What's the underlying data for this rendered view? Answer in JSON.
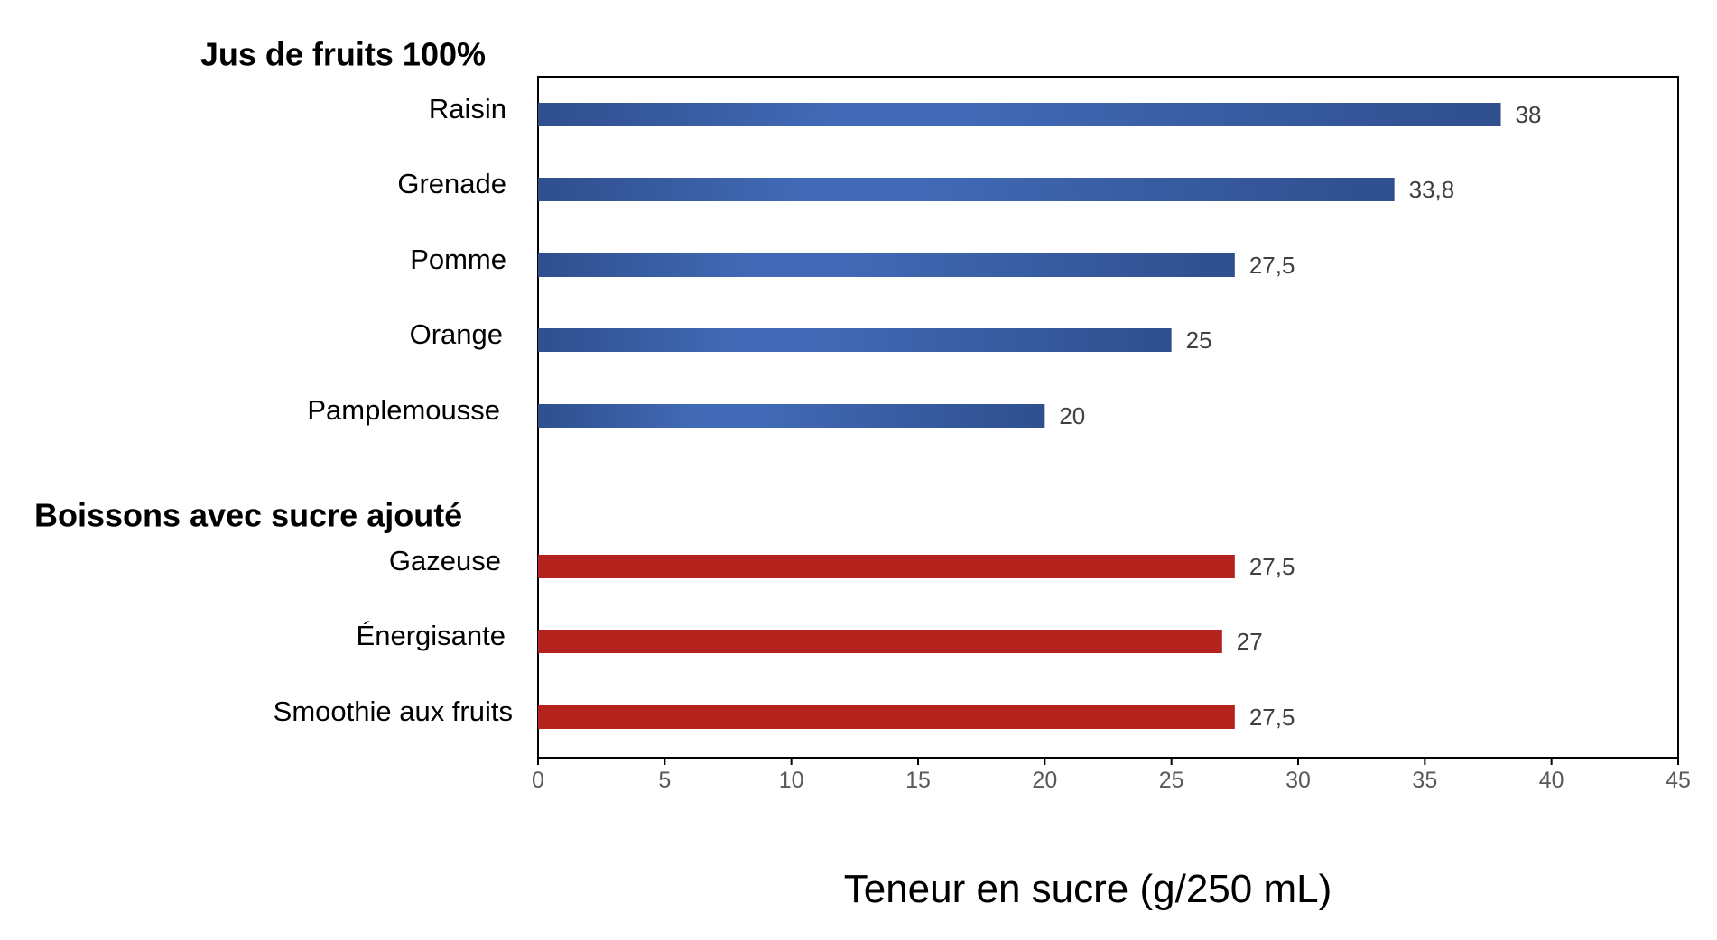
{
  "chart_data": {
    "type": "bar",
    "orientation": "horizontal",
    "xlabel": "Teneur en sucre (g/250 mL)",
    "xlim": [
      0,
      45
    ],
    "xticks": [
      0,
      5,
      10,
      15,
      20,
      25,
      30,
      35,
      40,
      45
    ],
    "grid": false,
    "legend": "none",
    "groups": [
      {
        "title": "Jus de fruits 100%",
        "color": "#3a5fa8",
        "items": [
          {
            "label": "Raisin",
            "value": 38,
            "value_label": "38"
          },
          {
            "label": "Grenade",
            "value": 33.8,
            "value_label": "33,8"
          },
          {
            "label": "Pomme",
            "value": 27.5,
            "value_label": "27,5"
          },
          {
            "label": "Orange",
            "value": 25,
            "value_label": "25"
          },
          {
            "label": "Pamplemousse",
            "value": 20,
            "value_label": "20"
          }
        ]
      },
      {
        "title": "Boissons avec sucre ajouté",
        "color": "#b3221d",
        "items": [
          {
            "label": "Gazeuse",
            "value": 27.5,
            "value_label": "27,5"
          },
          {
            "label": "Énergisante",
            "value": 27,
            "value_label": "27"
          },
          {
            "label": "Smoothie aux fruits",
            "value": 27.5,
            "value_label": "27,5"
          }
        ]
      }
    ]
  }
}
